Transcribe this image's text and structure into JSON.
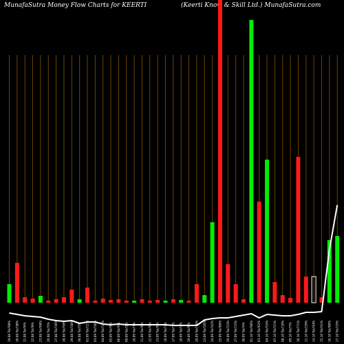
{
  "header": {
    "left_title": "MunafaSutra  Money Flow  Charts for KEERTI",
    "right_title": "(Keerti   Know   & Skill Ltd.) MunafaSutra.com"
  },
  "chart_data": {
    "type": "bar",
    "title": "MunafaSutra  Money Flow  Charts for KEERTI",
    "subtitle": "(Keerti   Know   & Skill Ltd.) MunafaSutra.com",
    "grid": true,
    "categories": [
      "19.08 Tsk?98%",
      "20.08 Tsk?38%",
      "21.08 Tsk?6%",
      "22.08 Tsk?8%",
      "23.08 Tsk?68%",
      "26.08 Tsk?5%",
      "27.08 Tsk?36%",
      "28.08 Tsk?59%",
      "29.08 Tsk?38%",
      "30.08 Tsk?5%",
      "02.09 Tsk?11%",
      "03.09 Tsk?30%",
      "04.09 Tsk?12%",
      "05.09 Tsk?9%",
      "06.09 Tsk?6%",
      "09.09 Tsk?2%",
      "10.09 Tsk?7%",
      "11.09 Tsk?8%",
      "12.09 Tsk?9%",
      "13.09 Tsk?6%",
      "16.09 Tsk?3%",
      "17.09 Tsk?7%",
      "18.09 Tsk?4%",
      "19.09 Tsk?0%",
      "20.09 Tsk?18%",
      "23.09 Tsk?20%",
      "24.09 Tsk?42%",
      "25.09 Tsk?89%",
      "26.09 Tsk?23%",
      "27.09 Tsk?15%",
      "30.09 Tsk?4%",
      "01.10 Tsk?90%",
      "03.10 Tsk?62%",
      "04.10 Tsk?55%",
      "07.10 Tsk?21%",
      "08.10 Tsk?19%",
      "09.10 Tsk?7%",
      "10.10 Tsk?71%",
      "11.10 Tsk?29%",
      "14.10 Tsk?44%",
      "15.10 Tsk?41%",
      "16.10 Tsk?80%",
      "17.10 Tsk?25%"
    ],
    "colors": [
      "green",
      "red",
      "red",
      "red",
      "green",
      "red",
      "red",
      "red",
      "red",
      "green",
      "red",
      "red",
      "red",
      "red",
      "red",
      "red",
      "green",
      "red",
      "red",
      "red",
      "green",
      "red",
      "green",
      "red",
      "red",
      "green",
      "green",
      "red",
      "red",
      "red",
      "red",
      "green",
      "red",
      "green",
      "red",
      "red",
      "red",
      "red",
      "red",
      "outline",
      "red",
      "green",
      "green"
    ],
    "values": [
      27,
      58,
      8,
      6,
      10,
      3,
      5,
      8,
      19,
      5,
      22,
      3,
      6,
      4,
      5,
      3,
      3,
      5,
      3,
      4,
      3,
      5,
      4,
      3,
      27,
      11,
      117,
      440,
      56,
      27,
      5,
      411,
      147,
      208,
      30,
      11,
      7,
      212,
      38,
      38,
      8,
      91,
      97
    ],
    "price_line": [
      95,
      93,
      91,
      90,
      89,
      86,
      84,
      83,
      84,
      80,
      82,
      82,
      79,
      78,
      79,
      78,
      78,
      78,
      78,
      78,
      78,
      77,
      77,
      77,
      77,
      85,
      87,
      88,
      88,
      90,
      92,
      94,
      88,
      93,
      92,
      91,
      91,
      93,
      96,
      96,
      97,
      187,
      252
    ],
    "color_map": {
      "green": "#00ee00",
      "red": "#ff1a1a",
      "outline": "#ffffff"
    },
    "background": "#000000",
    "grid_color": "#7a4a00",
    "line_color": "#ffffff",
    "ylim": [
      0,
      440
    ]
  }
}
